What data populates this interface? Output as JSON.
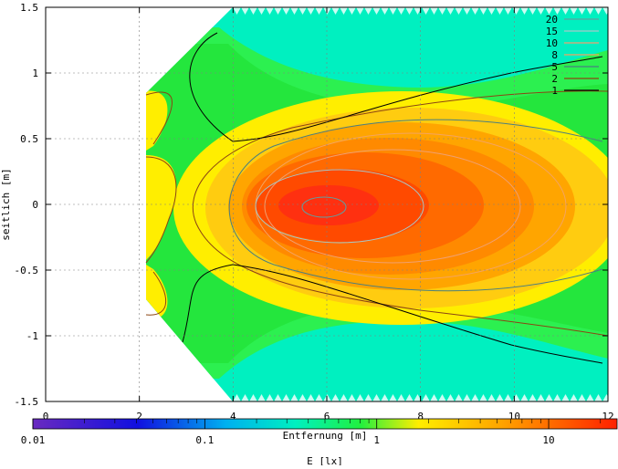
{
  "chart_data": {
    "type": "heatmap",
    "title": "",
    "xlabel": "Entfernung [m]",
    "ylabel": "seitlich [m]",
    "xlim": [
      0,
      12
    ],
    "ylim": [
      -1.5,
      1.5
    ],
    "x_ticks": [
      "0",
      "2",
      "4",
      "6",
      "8",
      "10",
      "12"
    ],
    "y_ticks": [
      "1.5",
      "1",
      "0.5",
      "0",
      "-0.5",
      "-1",
      "-1.5"
    ],
    "grid": true,
    "legend_position": "top-right",
    "contour_levels": [
      {
        "label": "20",
        "color": "#5f9ea0"
      },
      {
        "label": "15",
        "color": "#a6c8c8"
      },
      {
        "label": "10",
        "color": "#f0a070"
      },
      {
        "label": "8",
        "color": "#f4a460"
      },
      {
        "label": "5",
        "color": "#4a7f7f"
      },
      {
        "label": "2",
        "color": "#8b4513"
      },
      {
        "label": "1",
        "color": "#000000"
      }
    ],
    "colorbar": {
      "label": "E [lx]",
      "scale": "log",
      "ticks": [
        "0.01",
        "0.1",
        "1",
        "10"
      ],
      "tick_values": [
        0.01,
        0.1,
        1,
        10
      ],
      "range": [
        0.01,
        25
      ]
    },
    "peak": {
      "x": 5.8,
      "y": 0.0
    }
  }
}
